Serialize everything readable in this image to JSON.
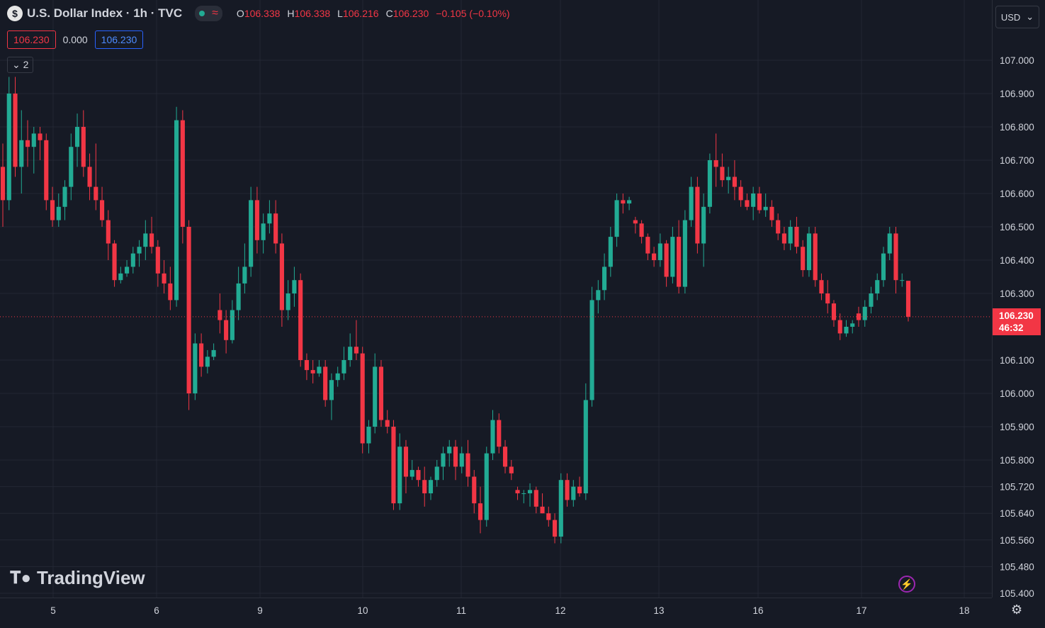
{
  "legend": {
    "symbol_icon": "$",
    "title": "U.S. Dollar Index · 1h · TVC",
    "status_wave": "≈",
    "o_label": "O",
    "o_value": "106.338",
    "h_label": "H",
    "h_value": "106.338",
    "l_label": "L",
    "l_value": "106.216",
    "c_label": "C",
    "c_value": "106.230",
    "change": "−0.105 (−0.10%)",
    "bid": "106.230",
    "spread": "0.000",
    "ask": "106.230",
    "indicators_count": "2"
  },
  "currency": "USD",
  "current_price": {
    "price": "106.230",
    "countdown": "46:32"
  },
  "brand": "TradingView",
  "colors": {
    "up": "#22ab94",
    "down": "#f23645",
    "background": "#161a25",
    "grid": "#232734"
  },
  "chart_data": {
    "type": "candlestick",
    "y_ticks": [
      "107.000",
      "106.900",
      "106.800",
      "106.700",
      "106.600",
      "106.500",
      "106.400",
      "106.300",
      "106.100",
      "106.000",
      "105.900",
      "105.800",
      "105.720",
      "105.640",
      "105.560",
      "105.480",
      "105.400"
    ],
    "x_ticks": [
      "5",
      "6",
      "9",
      "10",
      "11",
      "12",
      "13",
      "16",
      "17",
      "18"
    ],
    "ylim": [
      105.4,
      107.04
    ],
    "last_price": 106.23,
    "candles": [
      [
        106.68,
        106.75,
        106.5,
        106.58
      ],
      [
        106.58,
        106.95,
        106.55,
        106.9
      ],
      [
        106.9,
        106.95,
        106.65,
        106.68
      ],
      [
        106.68,
        106.85,
        106.6,
        106.76
      ],
      [
        106.76,
        106.82,
        106.68,
        106.74
      ],
      [
        106.74,
        106.8,
        106.66,
        106.78
      ],
      [
        106.78,
        106.8,
        106.7,
        106.76
      ],
      [
        106.76,
        106.78,
        106.55,
        106.58
      ],
      [
        106.58,
        106.62,
        106.5,
        106.52
      ],
      [
        106.52,
        106.6,
        106.5,
        106.56
      ],
      [
        106.56,
        106.64,
        106.52,
        106.62
      ],
      [
        106.62,
        106.78,
        106.58,
        106.74
      ],
      [
        106.74,
        106.84,
        106.68,
        106.8
      ],
      [
        106.8,
        106.85,
        106.65,
        106.68
      ],
      [
        106.68,
        106.72,
        106.58,
        106.62
      ],
      [
        106.62,
        106.75,
        106.55,
        106.58
      ],
      [
        106.58,
        106.62,
        106.5,
        106.52
      ],
      [
        106.52,
        106.55,
        106.4,
        106.45
      ],
      [
        106.45,
        106.46,
        106.32,
        106.34
      ],
      [
        106.34,
        106.38,
        106.33,
        106.36
      ],
      [
        106.36,
        106.4,
        106.35,
        106.38
      ],
      [
        106.38,
        106.44,
        106.36,
        106.42
      ],
      [
        106.42,
        106.46,
        106.38,
        106.44
      ],
      [
        106.44,
        106.52,
        106.4,
        106.48
      ],
      [
        106.48,
        106.53,
        106.42,
        106.44
      ],
      [
        106.44,
        106.46,
        106.32,
        106.36
      ],
      [
        106.36,
        106.4,
        106.3,
        106.33
      ],
      [
        106.33,
        106.38,
        106.25,
        106.28
      ],
      [
        106.28,
        106.86,
        106.26,
        106.82
      ],
      [
        106.82,
        106.85,
        106.45,
        106.5
      ],
      [
        106.5,
        106.52,
        105.95,
        106.0
      ],
      [
        106.0,
        106.18,
        105.98,
        106.15
      ],
      [
        106.15,
        106.18,
        106.05,
        106.08
      ],
      [
        106.08,
        106.13,
        106.06,
        106.11
      ],
      [
        106.11,
        106.15,
        106.1,
        106.13
      ],
      [
        106.25,
        106.3,
        106.18,
        106.22
      ],
      [
        106.22,
        106.25,
        106.12,
        106.16
      ],
      [
        106.16,
        106.28,
        106.15,
        106.25
      ],
      [
        106.25,
        106.38,
        106.22,
        106.33
      ],
      [
        106.33,
        106.45,
        106.3,
        106.38
      ],
      [
        106.38,
        106.62,
        106.35,
        106.58
      ],
      [
        106.58,
        106.62,
        106.42,
        106.46
      ],
      [
        106.46,
        106.54,
        106.42,
        106.51
      ],
      [
        106.51,
        106.58,
        106.48,
        106.54
      ],
      [
        106.54,
        106.58,
        106.42,
        106.45
      ],
      [
        106.45,
        106.48,
        106.2,
        106.25
      ],
      [
        106.25,
        106.34,
        106.22,
        106.3
      ],
      [
        106.3,
        106.38,
        106.26,
        106.34
      ],
      [
        106.34,
        106.36,
        106.08,
        106.1
      ],
      [
        106.1,
        106.12,
        106.04,
        106.07
      ],
      [
        106.07,
        106.1,
        106.03,
        106.06
      ],
      [
        106.06,
        106.1,
        106.05,
        106.08
      ],
      [
        106.08,
        106.1,
        105.96,
        105.98
      ],
      [
        105.98,
        106.06,
        105.92,
        106.04
      ],
      [
        106.04,
        106.08,
        106.02,
        106.06
      ],
      [
        106.06,
        106.14,
        106.04,
        106.1
      ],
      [
        106.1,
        106.18,
        106.08,
        106.14
      ],
      [
        106.14,
        106.22,
        106.1,
        106.12
      ],
      [
        106.12,
        106.14,
        105.82,
        105.85
      ],
      [
        105.85,
        105.92,
        105.82,
        105.9
      ],
      [
        105.9,
        106.12,
        105.88,
        106.08
      ],
      [
        106.08,
        106.1,
        105.9,
        105.92
      ],
      [
        105.92,
        105.95,
        105.88,
        105.9
      ],
      [
        105.9,
        105.92,
        105.65,
        105.67
      ],
      [
        105.67,
        105.88,
        105.65,
        105.84
      ],
      [
        105.84,
        105.86,
        105.7,
        105.75
      ],
      [
        105.75,
        105.8,
        105.74,
        105.77
      ],
      [
        105.77,
        105.78,
        105.72,
        105.74
      ],
      [
        105.74,
        105.78,
        105.66,
        105.7
      ],
      [
        105.7,
        105.75,
        105.68,
        105.74
      ],
      [
        105.74,
        105.8,
        105.72,
        105.78
      ],
      [
        105.78,
        105.84,
        105.74,
        105.82
      ],
      [
        105.82,
        105.86,
        105.78,
        105.84
      ],
      [
        105.84,
        105.86,
        105.74,
        105.78
      ],
      [
        105.78,
        105.84,
        105.76,
        105.82
      ],
      [
        105.82,
        105.86,
        105.72,
        105.75
      ],
      [
        105.75,
        105.77,
        105.64,
        105.67
      ],
      [
        105.67,
        105.72,
        105.58,
        105.62
      ],
      [
        105.62,
        105.84,
        105.6,
        105.82
      ],
      [
        105.82,
        105.95,
        105.8,
        105.92
      ],
      [
        105.92,
        105.94,
        105.82,
        105.84
      ],
      [
        105.84,
        105.86,
        105.76,
        105.78
      ],
      [
        105.78,
        105.8,
        105.74,
        105.76
      ],
      [
        105.71,
        105.72,
        105.68,
        105.7
      ],
      [
        105.7,
        105.71,
        105.67,
        105.7
      ],
      [
        105.7,
        105.73,
        105.66,
        105.71
      ],
      [
        105.71,
        105.72,
        105.64,
        105.66
      ],
      [
        105.66,
        105.7,
        105.64,
        105.64
      ],
      [
        105.64,
        105.66,
        105.6,
        105.62
      ],
      [
        105.62,
        105.64,
        105.55,
        105.57
      ],
      [
        105.57,
        105.76,
        105.55,
        105.74
      ],
      [
        105.74,
        105.76,
        105.66,
        105.68
      ],
      [
        105.68,
        105.74,
        105.66,
        105.72
      ],
      [
        105.72,
        105.75,
        105.69,
        105.7
      ],
      [
        105.7,
        106.03,
        105.68,
        105.98
      ],
      [
        105.98,
        106.32,
        105.96,
        106.28
      ],
      [
        106.28,
        106.34,
        106.24,
        106.31
      ],
      [
        106.31,
        106.42,
        106.28,
        106.38
      ],
      [
        106.38,
        106.5,
        106.35,
        106.47
      ],
      [
        106.47,
        106.6,
        106.44,
        106.58
      ],
      [
        106.58,
        106.6,
        106.54,
        106.57
      ],
      [
        106.57,
        106.59,
        106.55,
        106.58
      ],
      [
        106.52,
        106.53,
        106.48,
        106.51
      ],
      [
        106.51,
        106.52,
        106.45,
        106.47
      ],
      [
        106.47,
        106.48,
        106.4,
        106.42
      ],
      [
        106.42,
        106.44,
        106.38,
        106.4
      ],
      [
        106.4,
        106.48,
        106.38,
        106.45
      ],
      [
        106.45,
        106.46,
        106.32,
        106.35
      ],
      [
        106.35,
        106.5,
        106.33,
        106.47
      ],
      [
        106.47,
        106.52,
        106.3,
        106.32
      ],
      [
        106.32,
        106.55,
        106.3,
        106.52
      ],
      [
        106.52,
        106.65,
        106.5,
        106.62
      ],
      [
        106.62,
        106.65,
        106.42,
        106.45
      ],
      [
        106.45,
        106.6,
        106.38,
        106.56
      ],
      [
        106.56,
        106.72,
        106.54,
        106.7
      ],
      [
        106.7,
        106.78,
        106.62,
        106.68
      ],
      [
        106.68,
        106.72,
        106.62,
        106.64
      ],
      [
        106.64,
        106.68,
        106.6,
        106.65
      ],
      [
        106.65,
        106.7,
        106.58,
        106.62
      ],
      [
        106.62,
        106.64,
        106.56,
        106.58
      ],
      [
        106.58,
        106.6,
        106.55,
        106.56
      ],
      [
        106.56,
        106.62,
        106.52,
        106.6
      ],
      [
        106.6,
        106.62,
        106.54,
        106.55
      ],
      [
        106.55,
        106.6,
        106.53,
        106.56
      ],
      [
        106.56,
        106.58,
        106.5,
        106.52
      ],
      [
        106.52,
        106.54,
        106.46,
        106.48
      ],
      [
        106.48,
        106.5,
        106.43,
        106.45
      ],
      [
        106.45,
        106.52,
        106.43,
        106.5
      ],
      [
        106.5,
        106.53,
        106.42,
        106.44
      ],
      [
        106.44,
        106.46,
        106.35,
        106.37
      ],
      [
        106.37,
        106.5,
        106.35,
        106.48
      ],
      [
        106.48,
        106.5,
        106.32,
        106.34
      ],
      [
        106.34,
        106.36,
        106.28,
        106.3
      ],
      [
        106.3,
        106.34,
        106.24,
        106.27
      ],
      [
        106.27,
        106.28,
        106.2,
        106.22
      ],
      [
        106.22,
        106.24,
        106.16,
        106.18
      ],
      [
        106.18,
        106.22,
        106.17,
        106.2
      ],
      [
        106.2,
        106.22,
        106.18,
        106.21
      ],
      [
        106.24,
        106.26,
        106.2,
        106.22
      ],
      [
        106.22,
        106.28,
        106.2,
        106.26
      ],
      [
        106.26,
        106.32,
        106.24,
        106.3
      ],
      [
        106.3,
        106.36,
        106.28,
        106.34
      ],
      [
        106.34,
        106.44,
        106.32,
        106.42
      ],
      [
        106.42,
        106.5,
        106.4,
        106.48
      ],
      [
        106.48,
        106.5,
        106.3,
        106.34
      ],
      [
        106.34,
        106.36,
        106.32,
        106.34
      ],
      [
        106.338,
        106.338,
        106.216,
        106.23
      ]
    ]
  }
}
